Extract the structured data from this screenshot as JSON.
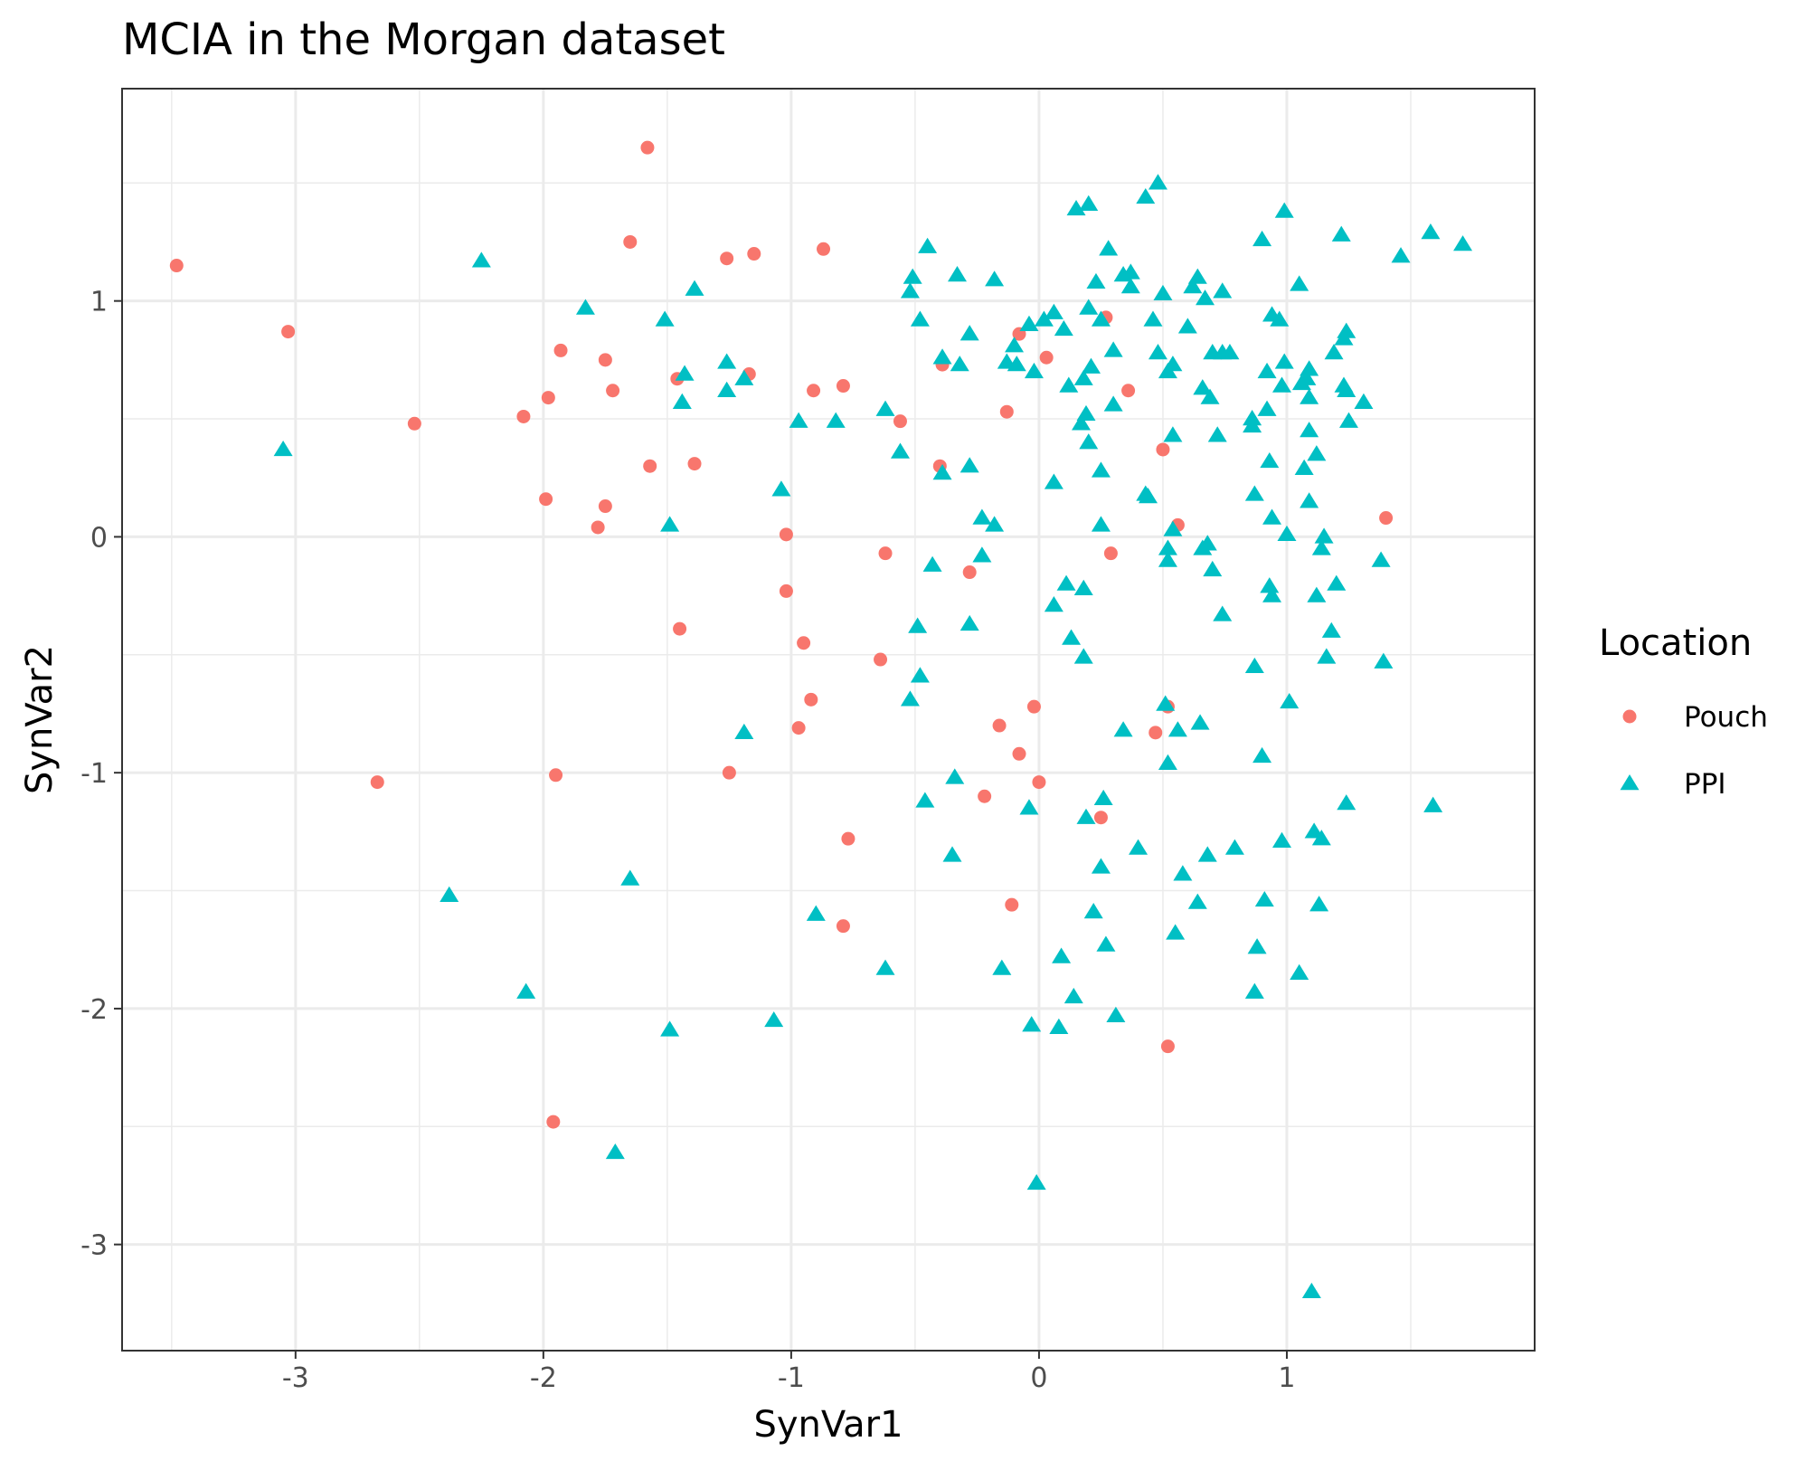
{
  "chart_data": {
    "type": "scatter",
    "title": "MCIA in the Morgan dataset",
    "xlabel": "SynVar1",
    "ylabel": "SynVar2",
    "xlim": [
      -3.7,
      2.0
    ],
    "ylim": [
      -3.45,
      1.9
    ],
    "x_ticks": [
      -3,
      -2,
      -1,
      0,
      1
    ],
    "y_ticks": [
      -3,
      -2,
      -1,
      0,
      1
    ],
    "grid": true,
    "legend": {
      "title": "Location",
      "position": "right"
    },
    "series": [
      {
        "name": "Pouch",
        "marker": "circle",
        "color": "#F8766D",
        "points": [
          [
            -3.48,
            1.15
          ],
          [
            -3.03,
            0.87
          ],
          [
            -2.52,
            0.48
          ],
          [
            -2.67,
            -1.04
          ],
          [
            -2.08,
            0.51
          ],
          [
            -1.98,
            0.59
          ],
          [
            -1.93,
            0.79
          ],
          [
            -1.99,
            0.16
          ],
          [
            -1.95,
            -1.01
          ],
          [
            -1.96,
            -2.48
          ],
          [
            -1.78,
            0.04
          ],
          [
            -1.75,
            0.75
          ],
          [
            -1.72,
            0.62
          ],
          [
            -1.75,
            0.13
          ],
          [
            -1.65,
            1.25
          ],
          [
            -1.58,
            1.65
          ],
          [
            -1.57,
            0.3
          ],
          [
            -1.46,
            0.67
          ],
          [
            -1.45,
            -0.39
          ],
          [
            -1.39,
            0.31
          ],
          [
            -1.26,
            1.18
          ],
          [
            -1.25,
            -1.0
          ],
          [
            -1.17,
            0.69
          ],
          [
            -1.15,
            1.2
          ],
          [
            -1.02,
            0.01
          ],
          [
            -1.02,
            -0.23
          ],
          [
            -0.95,
            -0.45
          ],
          [
            -0.97,
            -0.81
          ],
          [
            -0.91,
            0.62
          ],
          [
            -0.92,
            -0.69
          ],
          [
            -0.87,
            1.22
          ],
          [
            -0.79,
            0.64
          ],
          [
            -0.77,
            -1.28
          ],
          [
            -0.79,
            -1.65
          ],
          [
            -0.64,
            -0.52
          ],
          [
            -0.62,
            -0.07
          ],
          [
            -0.56,
            0.49
          ],
          [
            -0.4,
            0.3
          ],
          [
            -0.39,
            0.73
          ],
          [
            -0.28,
            -0.15
          ],
          [
            -0.22,
            -1.1
          ],
          [
            -0.16,
            -0.8
          ],
          [
            -0.13,
            0.53
          ],
          [
            -0.08,
            0.86
          ],
          [
            -0.11,
            -1.56
          ],
          [
            -0.08,
            -0.92
          ],
          [
            -0.02,
            -0.72
          ],
          [
            0.0,
            -1.04
          ],
          [
            0.03,
            0.76
          ],
          [
            0.25,
            -1.19
          ],
          [
            0.27,
            0.93
          ],
          [
            0.29,
            -0.07
          ],
          [
            0.36,
            0.62
          ],
          [
            0.47,
            -0.83
          ],
          [
            0.5,
            0.37
          ],
          [
            0.52,
            -0.72
          ],
          [
            0.52,
            -2.16
          ],
          [
            0.56,
            0.05
          ],
          [
            1.4,
            0.08
          ]
        ]
      },
      {
        "name": "PPI",
        "marker": "triangle",
        "color": "#00BFC4",
        "points": [
          [
            -3.05,
            0.37
          ],
          [
            -2.25,
            1.17
          ],
          [
            -2.38,
            -1.52
          ],
          [
            -2.07,
            -1.93
          ],
          [
            -1.83,
            0.97
          ],
          [
            -1.71,
            -2.61
          ],
          [
            -1.65,
            -1.45
          ],
          [
            -1.51,
            0.92
          ],
          [
            -1.49,
            0.05
          ],
          [
            -1.49,
            -2.09
          ],
          [
            -1.43,
            0.69
          ],
          [
            -1.44,
            0.57
          ],
          [
            -1.39,
            1.05
          ],
          [
            -1.26,
            0.74
          ],
          [
            -1.26,
            0.62
          ],
          [
            -1.19,
            0.67
          ],
          [
            -1.19,
            -0.83
          ],
          [
            -1.07,
            -2.05
          ],
          [
            -1.04,
            0.2
          ],
          [
            -0.97,
            0.49
          ],
          [
            -0.9,
            -1.6
          ],
          [
            -0.82,
            0.49
          ],
          [
            -0.62,
            0.54
          ],
          [
            -0.62,
            -1.83
          ],
          [
            -0.56,
            0.36
          ],
          [
            -0.51,
            1.1
          ],
          [
            -0.52,
            1.04
          ],
          [
            -0.48,
            0.92
          ],
          [
            -0.49,
            -0.38
          ],
          [
            -0.48,
            -0.59
          ],
          [
            -0.52,
            -0.69
          ],
          [
            -0.45,
            1.23
          ],
          [
            -0.46,
            -1.12
          ],
          [
            -0.43,
            -0.12
          ],
          [
            -0.39,
            0.76
          ],
          [
            -0.39,
            0.27
          ],
          [
            -0.33,
            1.11
          ],
          [
            -0.32,
            0.73
          ],
          [
            -0.34,
            -1.02
          ],
          [
            -0.35,
            -1.35
          ],
          [
            -0.28,
            0.86
          ],
          [
            -0.28,
            0.3
          ],
          [
            -0.28,
            -0.37
          ],
          [
            -0.23,
            0.08
          ],
          [
            -0.23,
            -0.08
          ],
          [
            -0.18,
            1.09
          ],
          [
            -0.18,
            0.05
          ],
          [
            -0.15,
            -1.83
          ],
          [
            -0.13,
            0.74
          ],
          [
            -0.1,
            0.81
          ],
          [
            -0.09,
            0.73
          ],
          [
            -0.04,
            0.9
          ],
          [
            -0.04,
            -1.15
          ],
          [
            -0.03,
            -2.07
          ],
          [
            -0.01,
            -2.74
          ],
          [
            -0.02,
            0.7
          ],
          [
            0.02,
            0.92
          ],
          [
            0.06,
            0.95
          ],
          [
            0.06,
            0.23
          ],
          [
            0.06,
            -0.29
          ],
          [
            0.09,
            -1.78
          ],
          [
            0.08,
            -2.08
          ],
          [
            0.1,
            0.88
          ],
          [
            0.12,
            0.64
          ],
          [
            0.11,
            -0.2
          ],
          [
            0.13,
            -0.43
          ],
          [
            0.15,
            1.39
          ],
          [
            0.14,
            -1.95
          ],
          [
            0.17,
            0.48
          ],
          [
            0.18,
            0.67
          ],
          [
            0.19,
            0.52
          ],
          [
            0.18,
            -0.22
          ],
          [
            0.18,
            -0.51
          ],
          [
            0.19,
            -1.19
          ],
          [
            0.2,
            1.41
          ],
          [
            0.2,
            0.97
          ],
          [
            0.21,
            0.72
          ],
          [
            0.2,
            0.4
          ],
          [
            0.22,
            -1.59
          ],
          [
            0.23,
            1.08
          ],
          [
            0.25,
            0.92
          ],
          [
            0.25,
            0.28
          ],
          [
            0.25,
            0.05
          ],
          [
            0.26,
            -1.11
          ],
          [
            0.25,
            -1.4
          ],
          [
            0.27,
            -1.73
          ],
          [
            0.28,
            1.22
          ],
          [
            0.3,
            0.79
          ],
          [
            0.3,
            0.56
          ],
          [
            0.31,
            -2.03
          ],
          [
            0.34,
            1.11
          ],
          [
            0.34,
            -0.82
          ],
          [
            0.37,
            1.12
          ],
          [
            0.37,
            1.06
          ],
          [
            0.4,
            -1.32
          ],
          [
            0.43,
            1.44
          ],
          [
            0.43,
            0.18
          ],
          [
            0.44,
            0.17
          ],
          [
            0.46,
            0.92
          ],
          [
            0.48,
            1.5
          ],
          [
            0.48,
            0.78
          ],
          [
            0.5,
            1.03
          ],
          [
            0.51,
            -0.71
          ],
          [
            0.52,
            0.7
          ],
          [
            0.52,
            -0.05
          ],
          [
            0.52,
            -0.1
          ],
          [
            0.52,
            -0.96
          ],
          [
            0.54,
            0.73
          ],
          [
            0.54,
            0.43
          ],
          [
            0.54,
            0.03
          ],
          [
            0.55,
            -1.68
          ],
          [
            0.56,
            -0.82
          ],
          [
            0.58,
            -1.43
          ],
          [
            0.6,
            0.89
          ],
          [
            0.62,
            1.06
          ],
          [
            0.64,
            1.1
          ],
          [
            0.64,
            -1.55
          ],
          [
            0.65,
            -0.79
          ],
          [
            0.66,
            0.63
          ],
          [
            0.66,
            -0.05
          ],
          [
            0.67,
            1.01
          ],
          [
            0.68,
            -0.03
          ],
          [
            0.68,
            -1.35
          ],
          [
            0.69,
            0.59
          ],
          [
            0.7,
            0.78
          ],
          [
            0.7,
            -0.14
          ],
          [
            0.72,
            0.43
          ],
          [
            0.74,
            1.04
          ],
          [
            0.74,
            0.78
          ],
          [
            0.74,
            -0.33
          ],
          [
            0.77,
            0.78
          ],
          [
            0.79,
            -1.32
          ],
          [
            0.86,
            0.5
          ],
          [
            0.86,
            0.47
          ],
          [
            0.87,
            0.18
          ],
          [
            0.87,
            -0.55
          ],
          [
            0.87,
            -1.93
          ],
          [
            0.88,
            -1.74
          ],
          [
            0.9,
            1.26
          ],
          [
            0.9,
            -0.93
          ],
          [
            0.91,
            -1.54
          ],
          [
            0.92,
            0.7
          ],
          [
            0.92,
            0.54
          ],
          [
            0.93,
            0.32
          ],
          [
            0.93,
            -0.21
          ],
          [
            0.94,
            0.94
          ],
          [
            0.94,
            0.08
          ],
          [
            0.94,
            -0.25
          ],
          [
            0.97,
            0.92
          ],
          [
            0.98,
            0.64
          ],
          [
            0.98,
            -1.29
          ],
          [
            0.99,
            0.74
          ],
          [
            0.99,
            1.38
          ],
          [
            1.0,
            0.01
          ],
          [
            1.01,
            -0.7
          ],
          [
            1.05,
            1.07
          ],
          [
            1.05,
            -1.85
          ],
          [
            1.06,
            0.65
          ],
          [
            1.07,
            0.29
          ],
          [
            1.08,
            0.67
          ],
          [
            1.09,
            0.71
          ],
          [
            1.09,
            0.59
          ],
          [
            1.09,
            0.45
          ],
          [
            1.09,
            0.15
          ],
          [
            1.1,
            -3.2
          ],
          [
            1.11,
            -1.25
          ],
          [
            1.12,
            0.35
          ],
          [
            1.12,
            -0.25
          ],
          [
            1.13,
            -1.56
          ],
          [
            1.14,
            -1.28
          ],
          [
            1.14,
            -0.05
          ],
          [
            1.15,
            0.0
          ],
          [
            1.16,
            -0.51
          ],
          [
            1.18,
            -0.4
          ],
          [
            1.19,
            0.78
          ],
          [
            1.2,
            -0.2
          ],
          [
            1.22,
            1.28
          ],
          [
            1.23,
            0.64
          ],
          [
            1.23,
            0.84
          ],
          [
            1.24,
            0.87
          ],
          [
            1.24,
            0.62
          ],
          [
            1.25,
            0.49
          ],
          [
            1.24,
            -1.13
          ],
          [
            1.31,
            0.57
          ],
          [
            1.38,
            -0.1
          ],
          [
            1.39,
            -0.53
          ],
          [
            1.46,
            1.19
          ],
          [
            1.58,
            1.29
          ],
          [
            1.59,
            -1.14
          ],
          [
            1.71,
            1.24
          ]
        ]
      }
    ]
  }
}
